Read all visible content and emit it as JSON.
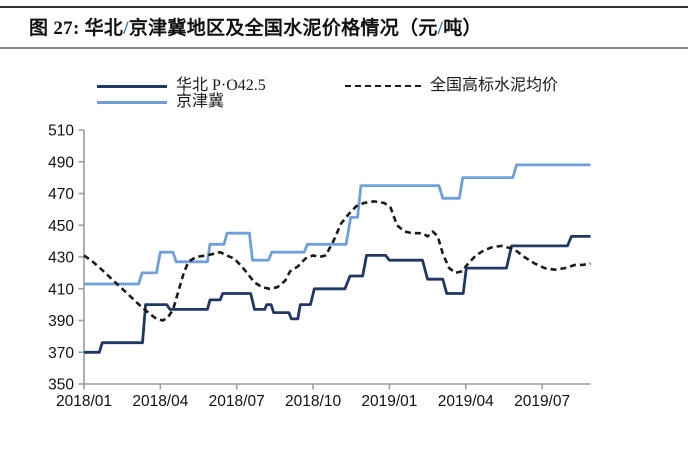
{
  "figure": {
    "title": {
      "prefix": "图 27:",
      "part1": "  华北",
      "slash1": "/",
      "part2": "京津冀地区及全国水泥价格情况（元",
      "slash2": "/",
      "part3": "吨）",
      "slash_color": "#2E74B5"
    }
  },
  "legend": {
    "items": [
      {
        "label": "华北 P·O42.5",
        "color": "#1F3864",
        "style": "solid"
      },
      {
        "label": "京津冀",
        "color": "#6FA0DC",
        "style": "solid"
      },
      {
        "label": "全国高标水泥均价",
        "color": "#1a1a1a",
        "style": "dashed"
      }
    ]
  },
  "chart_data": {
    "type": "line",
    "title": "华北/京津冀地区及全国水泥价格情况（元/吨）",
    "grid": false,
    "legend_position": "top-left",
    "axis_color": "#9c9c9c",
    "tick_label_color": "#111111",
    "x_axis": {
      "unit": "month (YYYY/MM)",
      "tick_labels": [
        "2018/01",
        "2018/04",
        "2018/07",
        "2018/10",
        "2019/01",
        "2019/04",
        "2019/07"
      ],
      "tick_months": [
        0,
        3,
        6,
        9,
        12,
        15,
        18
      ],
      "start_month": 0,
      "end_month": 19.9
    },
    "y_axis": {
      "min": 350,
      "max": 510,
      "step": 20,
      "ticks": [
        350,
        370,
        390,
        410,
        430,
        450,
        470,
        490,
        510
      ]
    },
    "series": [
      {
        "name": "华北 P·O42.5",
        "color": "#1F3864",
        "dash": null,
        "width": 2.8,
        "points": [
          [
            0,
            370
          ],
          [
            0.6,
            370
          ],
          [
            0.72,
            376
          ],
          [
            2.3,
            376
          ],
          [
            2.42,
            400
          ],
          [
            3.25,
            400
          ],
          [
            3.38,
            397
          ],
          [
            4.85,
            397
          ],
          [
            4.95,
            403
          ],
          [
            5.35,
            403
          ],
          [
            5.45,
            407
          ],
          [
            6.55,
            407
          ],
          [
            6.7,
            397
          ],
          [
            7.1,
            397
          ],
          [
            7.18,
            400
          ],
          [
            7.35,
            400
          ],
          [
            7.45,
            395
          ],
          [
            8.05,
            395
          ],
          [
            8.15,
            391
          ],
          [
            8.4,
            391
          ],
          [
            8.5,
            400
          ],
          [
            8.9,
            400
          ],
          [
            9.05,
            410
          ],
          [
            10.25,
            410
          ],
          [
            10.45,
            418
          ],
          [
            10.95,
            418
          ],
          [
            11.1,
            431
          ],
          [
            11.85,
            431
          ],
          [
            12.0,
            428
          ],
          [
            13.3,
            428
          ],
          [
            13.5,
            416
          ],
          [
            14.1,
            416
          ],
          [
            14.25,
            407
          ],
          [
            14.9,
            407
          ],
          [
            15.02,
            423
          ],
          [
            16.6,
            423
          ],
          [
            16.8,
            437
          ],
          [
            19.0,
            437
          ],
          [
            19.15,
            443
          ],
          [
            19.9,
            443
          ]
        ]
      },
      {
        "name": "京津冀",
        "color": "#6FA0DC",
        "dash": null,
        "width": 2.8,
        "points": [
          [
            0,
            413
          ],
          [
            2.15,
            413
          ],
          [
            2.28,
            420
          ],
          [
            2.85,
            420
          ],
          [
            3.0,
            433
          ],
          [
            3.5,
            433
          ],
          [
            3.62,
            427
          ],
          [
            4.85,
            427
          ],
          [
            4.95,
            438
          ],
          [
            5.5,
            438
          ],
          [
            5.62,
            445
          ],
          [
            6.5,
            445
          ],
          [
            6.62,
            428
          ],
          [
            7.25,
            428
          ],
          [
            7.38,
            433
          ],
          [
            8.65,
            433
          ],
          [
            8.78,
            438
          ],
          [
            10.3,
            438
          ],
          [
            10.48,
            455
          ],
          [
            10.75,
            455
          ],
          [
            10.88,
            475
          ],
          [
            13.95,
            475
          ],
          [
            14.1,
            467
          ],
          [
            14.75,
            467
          ],
          [
            14.88,
            480
          ],
          [
            16.85,
            480
          ],
          [
            17.0,
            488
          ],
          [
            19.9,
            488
          ]
        ]
      },
      {
        "name": "全国高标水泥均价",
        "color": "#1a1a1a",
        "dash": "6,4",
        "width": 2.6,
        "points": [
          [
            0,
            431
          ],
          [
            0.35,
            427
          ],
          [
            0.7,
            422
          ],
          [
            1.1,
            416
          ],
          [
            1.5,
            410
          ],
          [
            1.9,
            404
          ],
          [
            2.3,
            398
          ],
          [
            2.6,
            394
          ],
          [
            2.85,
            391
          ],
          [
            3.1,
            390
          ],
          [
            3.3,
            392
          ],
          [
            3.5,
            397
          ],
          [
            3.7,
            408
          ],
          [
            3.9,
            419
          ],
          [
            4.1,
            427
          ],
          [
            4.4,
            430
          ],
          [
            4.8,
            431
          ],
          [
            5.1,
            432
          ],
          [
            5.35,
            433
          ],
          [
            5.6,
            431
          ],
          [
            5.9,
            429
          ],
          [
            6.2,
            424
          ],
          [
            6.5,
            418
          ],
          [
            6.7,
            414
          ],
          [
            7.0,
            411
          ],
          [
            7.3,
            410
          ],
          [
            7.6,
            411
          ],
          [
            7.9,
            415
          ],
          [
            8.1,
            421
          ],
          [
            8.4,
            424
          ],
          [
            8.7,
            429
          ],
          [
            9.0,
            431
          ],
          [
            9.25,
            430
          ],
          [
            9.5,
            431
          ],
          [
            9.8,
            440
          ],
          [
            10.1,
            451
          ],
          [
            10.4,
            457
          ],
          [
            10.7,
            462
          ],
          [
            11.0,
            464
          ],
          [
            11.4,
            465
          ],
          [
            11.8,
            464
          ],
          [
            12.05,
            461
          ],
          [
            12.3,
            450
          ],
          [
            12.6,
            446
          ],
          [
            12.9,
            445
          ],
          [
            13.3,
            445
          ],
          [
            13.5,
            443
          ],
          [
            13.7,
            446
          ],
          [
            13.9,
            443
          ],
          [
            14.1,
            432
          ],
          [
            14.35,
            423
          ],
          [
            14.6,
            420
          ],
          [
            14.85,
            421
          ],
          [
            15.1,
            426
          ],
          [
            15.4,
            431
          ],
          [
            15.7,
            434
          ],
          [
            16.0,
            436
          ],
          [
            16.4,
            437
          ],
          [
            16.9,
            435
          ],
          [
            17.3,
            430
          ],
          [
            17.7,
            426
          ],
          [
            18.1,
            423
          ],
          [
            18.5,
            422
          ],
          [
            18.9,
            423
          ],
          [
            19.3,
            425
          ],
          [
            19.6,
            425
          ],
          [
            19.9,
            426
          ]
        ]
      }
    ]
  }
}
